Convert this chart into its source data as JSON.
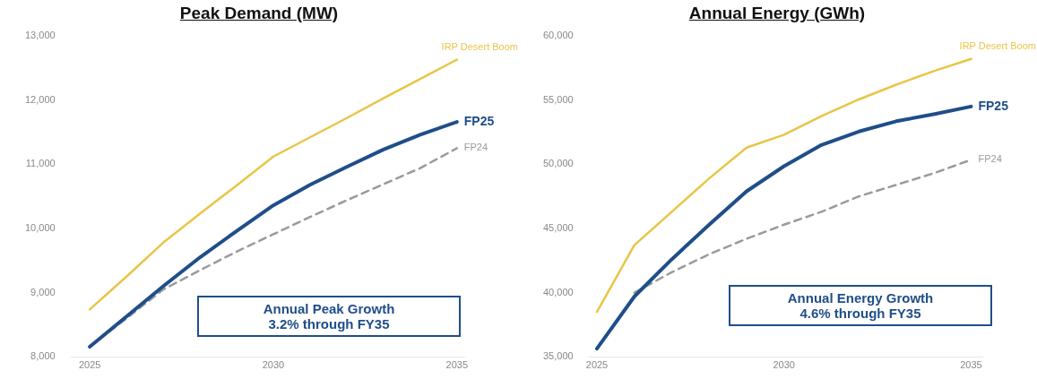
{
  "chart_data": [
    {
      "type": "line",
      "title": "Peak Demand (MW)",
      "x": [
        2025,
        2026,
        2027,
        2028,
        2029,
        2030,
        2031,
        2032,
        2033,
        2034,
        2035
      ],
      "series": [
        {
          "name": "IRP Desert Boom",
          "color": "#e8c547",
          "values": [
            8740,
            9250,
            9780,
            10230,
            10670,
            11120,
            11420,
            11720,
            12030,
            12330,
            12630
          ]
        },
        {
          "name": "FP25",
          "color": "#1f4e89",
          "values": [
            8160,
            8630,
            9100,
            9550,
            9960,
            10360,
            10680,
            10960,
            11230,
            11460,
            11660
          ]
        },
        {
          "name": "FP24",
          "color": "#9a9a9a",
          "line_style": "dashed",
          "values": [
            8160,
            8600,
            9050,
            9350,
            9640,
            9910,
            10180,
            10440,
            10690,
            10940,
            11250
          ]
        }
      ],
      "xlim": [
        2024.5,
        2035.2
      ],
      "xticks": [
        2025,
        2030,
        2035
      ],
      "ylim": [
        8000,
        13000
      ],
      "yticks": [
        {
          "value": 8000,
          "label": "8,000"
        },
        {
          "value": 9000,
          "label": "9,000"
        },
        {
          "value": 10000,
          "label": "10,000"
        },
        {
          "value": 11000,
          "label": "11,000"
        },
        {
          "value": 12000,
          "label": "12,000"
        },
        {
          "value": 13000,
          "label": "13,000"
        }
      ],
      "grid": false,
      "legend": false,
      "marker": "none",
      "line_style": "solid",
      "annotations": [
        "Annual Peak Growth\n3.2% through FY35"
      ]
    },
    {
      "type": "line",
      "title": "Annual Energy (GWh)",
      "x": [
        2025,
        2026,
        2027,
        2028,
        2029,
        2030,
        2031,
        2032,
        2033,
        2034,
        2035
      ],
      "series": [
        {
          "name": "IRP Desert Boom",
          "color": "#e8c547",
          "values": [
            38500,
            43700,
            46300,
            48900,
            51300,
            52300,
            53750,
            55050,
            56200,
            57250,
            58200
          ]
        },
        {
          "name": "FP25",
          "color": "#1f4e89",
          "values": [
            35650,
            39700,
            42600,
            45300,
            47900,
            49850,
            51500,
            52550,
            53350,
            53900,
            54500
          ]
        },
        {
          "name": "FP24",
          "color": "#9a9a9a",
          "line_style": "dashed",
          "values": [
            null,
            40000,
            41600,
            43000,
            44200,
            45300,
            46300,
            47500,
            48400,
            49300,
            50350
          ]
        }
      ],
      "xlim": [
        2024.8,
        2035.3
      ],
      "xticks": [
        2025,
        2030,
        2035
      ],
      "ylim": [
        35000,
        60000
      ],
      "yticks": [
        {
          "value": 35000,
          "label": "35,000"
        },
        {
          "value": 40000,
          "label": "40,000"
        },
        {
          "value": 45000,
          "label": "45,000"
        },
        {
          "value": 50000,
          "label": "50,000"
        },
        {
          "value": 55000,
          "label": "55,000"
        },
        {
          "value": 60000,
          "label": "60,000"
        }
      ],
      "grid": false,
      "legend": false,
      "marker": "none",
      "line_style": "solid",
      "annotations": [
        "Annual Energy Growth\n4.6% through FY35"
      ]
    }
  ]
}
